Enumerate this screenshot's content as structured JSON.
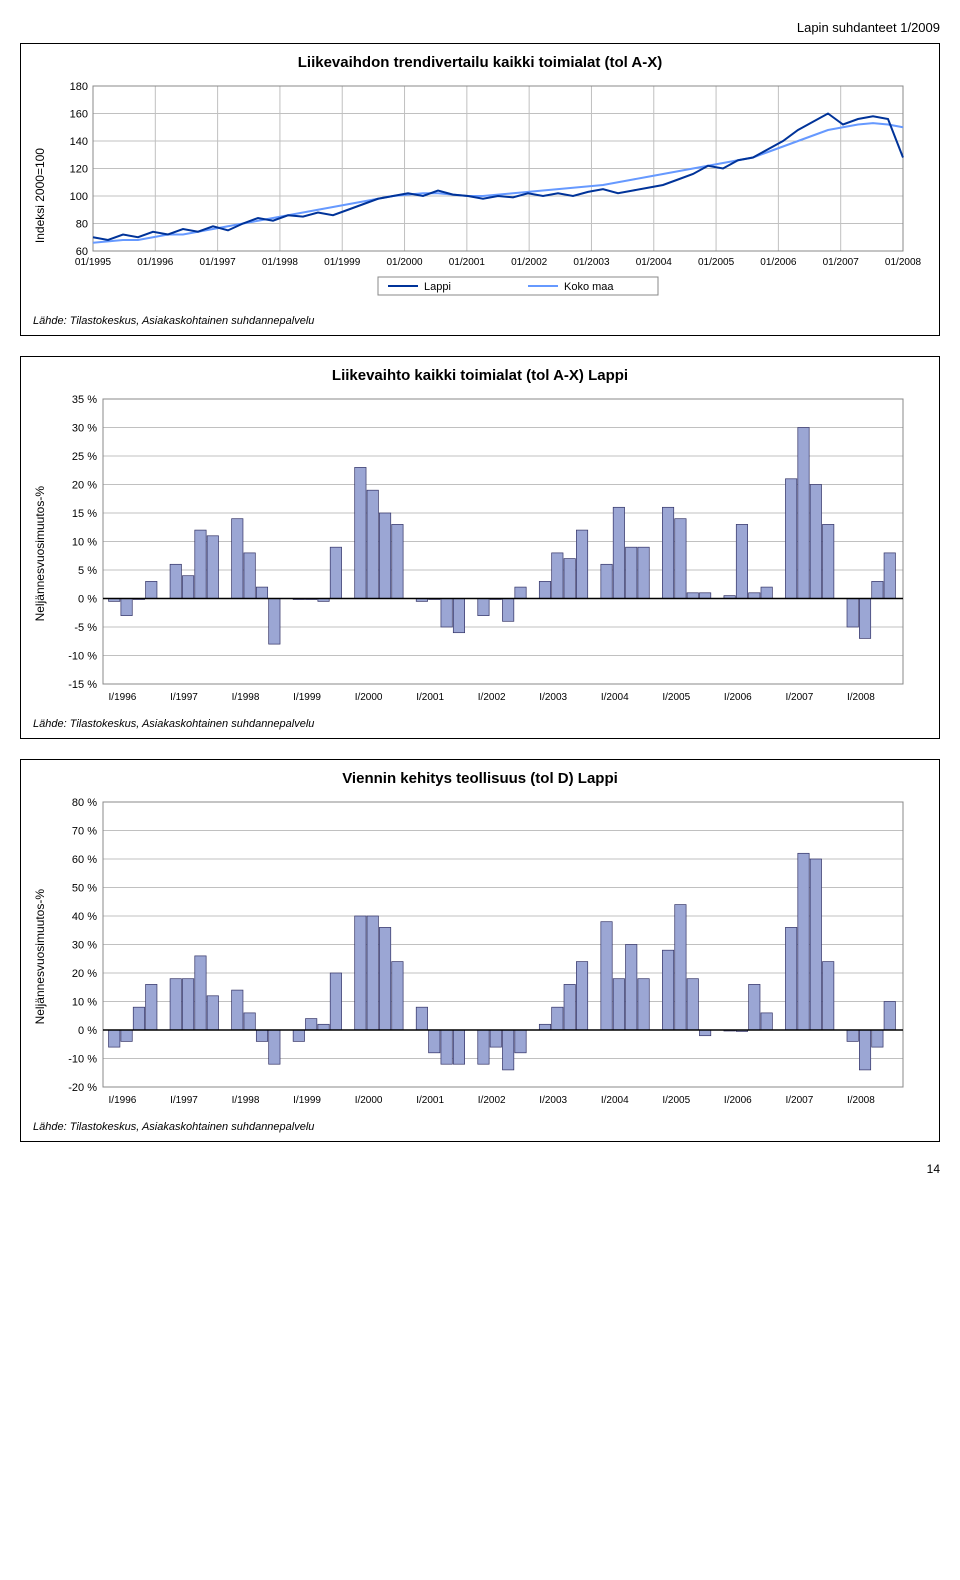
{
  "header": "Lapin suhdanteet 1/2009",
  "page_number": "14",
  "chart1": {
    "title": "Liikevaihdon trendivertailu kaikki toimialat (tol A-X)",
    "ylabel": "Indeksi 2000=100",
    "xlabels": [
      "01/1995",
      "01/1996",
      "01/1997",
      "01/1998",
      "01/1999",
      "01/2000",
      "01/2001",
      "01/2002",
      "01/2003",
      "01/2004",
      "01/2005",
      "01/2006",
      "01/2007",
      "01/2008"
    ],
    "legend": [
      "Lappi",
      "Koko maa"
    ],
    "source": "Lähde: Tilastokeskus, Asiakaskohtainen suhdannepalvelu",
    "ylim": [
      60,
      180
    ],
    "yticks": [
      60,
      80,
      100,
      120,
      140,
      160,
      180
    ],
    "colors": {
      "lappi": "#003399",
      "koko": "#6699ff",
      "grid": "#c0c0c0",
      "bg": "#ffffff"
    },
    "lappi": [
      70,
      68,
      72,
      70,
      74,
      72,
      76,
      74,
      78,
      75,
      80,
      84,
      82,
      86,
      85,
      88,
      86,
      90,
      94,
      98,
      100,
      102,
      100,
      104,
      101,
      100,
      98,
      100,
      99,
      102,
      100,
      102,
      100,
      103,
      105,
      102,
      104,
      106,
      108,
      112,
      116,
      122,
      120,
      126,
      128,
      134,
      140,
      148,
      154,
      160,
      152,
      156,
      158,
      156,
      128
    ],
    "koko": [
      66,
      67,
      68,
      68,
      70,
      72,
      72,
      74,
      76,
      78,
      80,
      82,
      84,
      86,
      88,
      90,
      92,
      94,
      96,
      98,
      100,
      101,
      102,
      102,
      101,
      100,
      100,
      101,
      102,
      103,
      104,
      105,
      106,
      107,
      108,
      110,
      112,
      114,
      116,
      118,
      120,
      122,
      124,
      126,
      128,
      132,
      136,
      140,
      144,
      148,
      150,
      152,
      153,
      152,
      150
    ]
  },
  "chart2": {
    "title": "Liikevaihto kaikki toimialat (tol A-X) Lappi",
    "ylabel": "Neljännesvuosimuutos-%",
    "source": "Lähde: Tilastokeskus, Asiakaskohtainen suhdannepalvelu",
    "ylim": [
      -15,
      35
    ],
    "yticks": [
      -15,
      -10,
      -5,
      0,
      5,
      10,
      15,
      20,
      25,
      30,
      35
    ],
    "xlabels": [
      "I/1996",
      "I/1997",
      "I/1998",
      "I/1999",
      "I/2000",
      "I/2001",
      "I/2002",
      "I/2003",
      "I/2004",
      "I/2005",
      "I/2006",
      "I/2007",
      "I/2008"
    ],
    "bar_color": "#9ba6d4",
    "bar_border": "#333366",
    "grid": "#c0c0c0",
    "values": [
      -0.5,
      -3,
      0,
      3,
      6,
      4,
      12,
      11,
      14,
      8,
      2,
      -8,
      0,
      0,
      -0.5,
      9,
      23,
      19,
      15,
      13,
      -0.5,
      0,
      -5,
      -6,
      -3,
      0,
      -4,
      2,
      3,
      8,
      7,
      12,
      6,
      16,
      9,
      9,
      16,
      14,
      1,
      1,
      0.5,
      13,
      1,
      2,
      21,
      30,
      20,
      13,
      -5,
      -7,
      3,
      8
    ],
    "bars_per_group": 4
  },
  "chart3": {
    "title": "Viennin kehitys teollisuus (tol D) Lappi",
    "ylabel": "Neljännesvuosimuutos-%",
    "source": "Lähde: Tilastokeskus, Asiakaskohtainen suhdannepalvelu",
    "ylim": [
      -20,
      80
    ],
    "yticks": [
      -20,
      -10,
      0,
      10,
      20,
      30,
      40,
      50,
      60,
      70,
      80
    ],
    "xlabels": [
      "I/1996",
      "I/1997",
      "I/1998",
      "I/1999",
      "I/2000",
      "I/2001",
      "I/2002",
      "I/2003",
      "I/2004",
      "I/2005",
      "I/2006",
      "I/2007",
      "I/2008"
    ],
    "bar_color": "#9ba6d4",
    "bar_border": "#333366",
    "grid": "#c0c0c0",
    "values": [
      -6,
      -4,
      8,
      16,
      18,
      18,
      26,
      12,
      14,
      6,
      -4,
      -12,
      -4,
      4,
      2,
      20,
      40,
      40,
      36,
      24,
      8,
      -8,
      -12,
      -12,
      -12,
      -6,
      -14,
      -8,
      2,
      8,
      16,
      24,
      38,
      18,
      30,
      18,
      28,
      44,
      18,
      -2,
      0,
      -0.5,
      16,
      6,
      36,
      62,
      60,
      24,
      -4,
      -14,
      -6,
      10
    ],
    "bars_per_group": 4
  }
}
